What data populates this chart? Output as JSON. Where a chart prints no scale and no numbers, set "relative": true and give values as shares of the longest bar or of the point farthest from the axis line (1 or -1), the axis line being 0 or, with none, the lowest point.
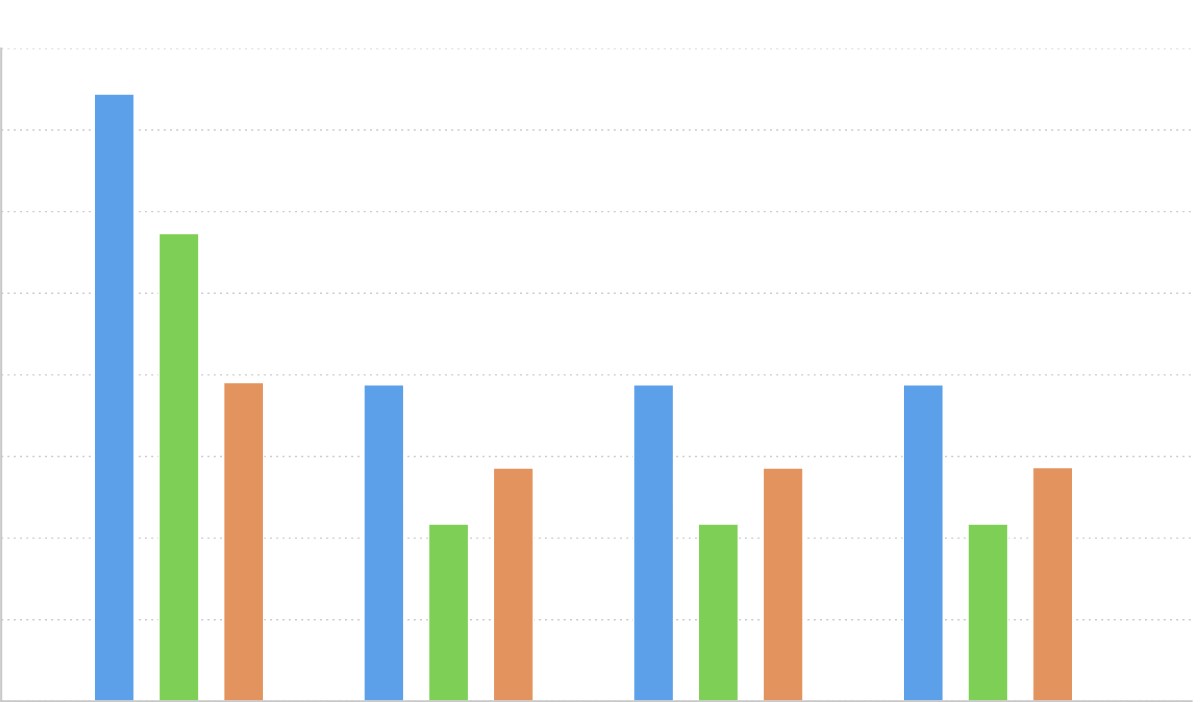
{
  "chart_data": {
    "type": "bar",
    "relative": true,
    "grid": "y",
    "categories": [
      null,
      null,
      null,
      null
    ],
    "series": [
      {
        "color": "#5ba0e8",
        "values": [
          1,
          0.521,
          0.521,
          0.521
        ]
      },
      {
        "color": "#7ecf55",
        "values": [
          0.77,
          0.292,
          0.292,
          0.292
        ]
      },
      {
        "color": "#e3935d",
        "values": [
          0.525,
          0.384,
          0.384,
          0.385
        ]
      }
    ]
  }
}
